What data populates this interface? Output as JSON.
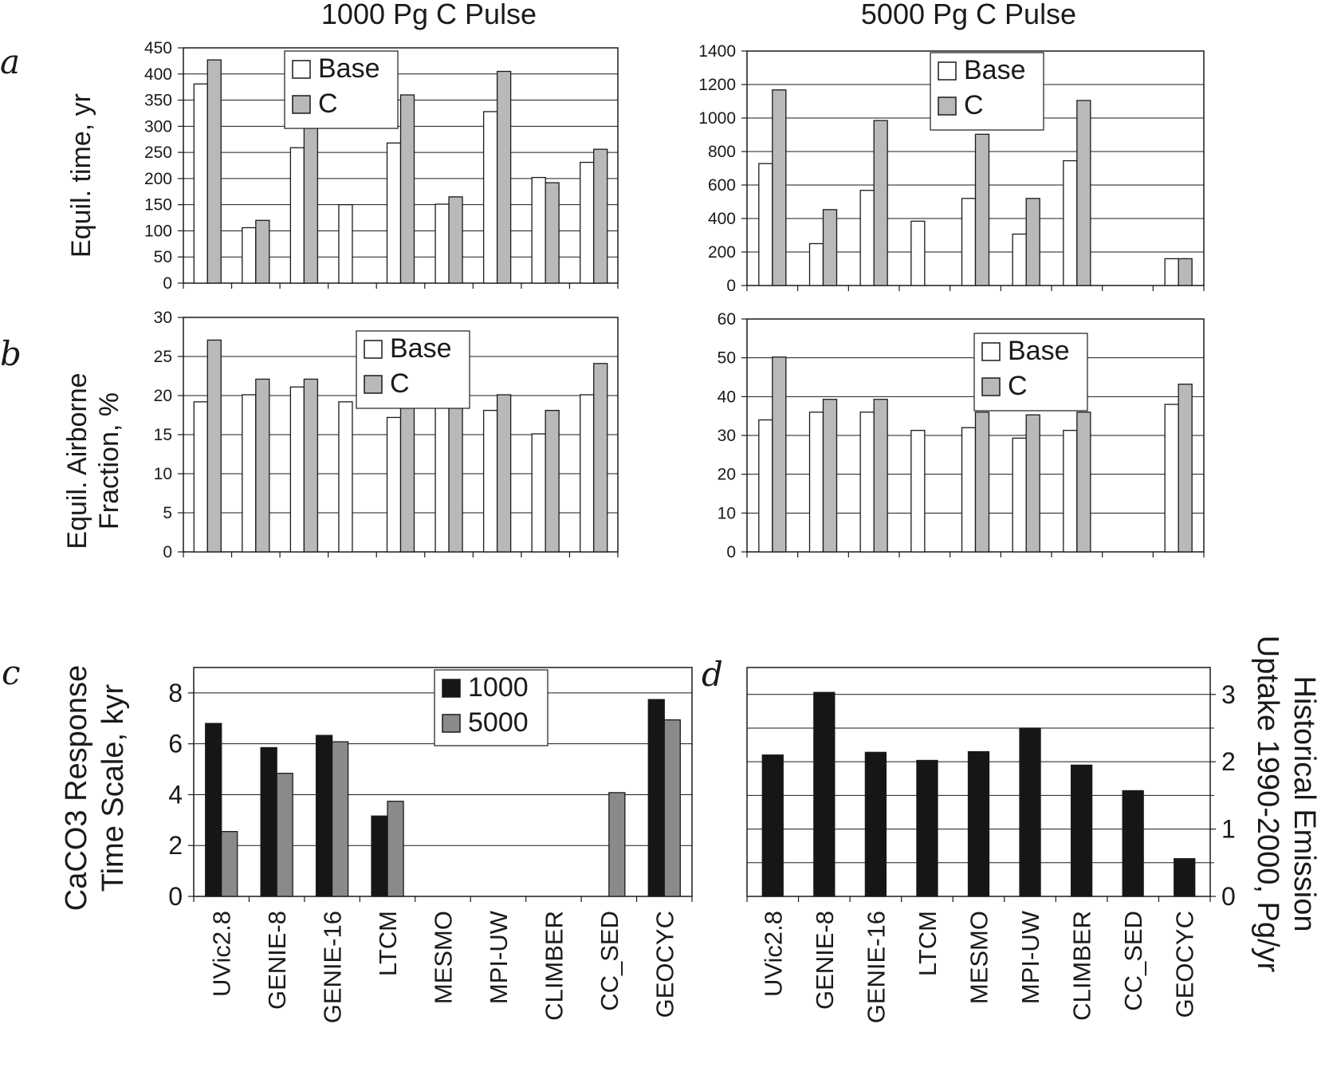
{
  "columns": {
    "left_title": "1000 Pg C Pulse",
    "right_title": "5000 Pg C Pulse"
  },
  "row_labels": {
    "a": {
      "letter": "a",
      "ylabel": "Equil. time, yr"
    },
    "b": {
      "letter": "b",
      "ylabel_line1": "Equil. Airborne",
      "ylabel_line2": "Fraction, %"
    },
    "c": {
      "letter": "c",
      "ylabel_line1": "CaCO3 Response",
      "ylabel_line2": "Time Scale, kyr"
    },
    "d": {
      "letter": "d",
      "ylabel_line1": "Historical Emission",
      "ylabel_line2": "Uptake 1990-2000, Pg/yr"
    }
  },
  "categories": [
    "UVic2.8",
    "GENIE-8",
    "GENIE-16",
    "LTCM",
    "MESMO",
    "MPI-UW",
    "CLIMBER",
    "CC_SED",
    "GEOCYC"
  ],
  "colors": {
    "base": "#ffffff",
    "c": "#b9b9b9",
    "black": "#161616",
    "gray5000": "#8a8a8a",
    "axis": "#1a1a1a"
  },
  "chart_data": [
    {
      "id": "a_left",
      "type": "bar",
      "title": "1000 Pg C Pulse",
      "ylabel": "Equil. time, yr",
      "ylim": [
        0,
        450
      ],
      "yticks": [
        0,
        50,
        100,
        150,
        200,
        250,
        300,
        350,
        400,
        450
      ],
      "grid": true,
      "legend": "top-center",
      "categories": [
        "UVic2.8",
        "GENIE-8",
        "GENIE-16",
        "LTCM",
        "MESMO",
        "MPI-UW",
        "CLIMBER",
        "CC_SED",
        "GEOCYC"
      ],
      "series": [
        {
          "name": "Base",
          "color": "#ffffff",
          "values": [
            381,
            106,
            259,
            150,
            268,
            151,
            328,
            202,
            231
          ]
        },
        {
          "name": "C",
          "color": "#b9b9b9",
          "values": [
            427,
            120,
            310,
            null,
            360,
            165,
            405,
            192,
            256
          ]
        }
      ]
    },
    {
      "id": "a_right",
      "type": "bar",
      "title": "5000 Pg C Pulse",
      "ylim": [
        0,
        1400
      ],
      "yticks": [
        0,
        200,
        400,
        600,
        800,
        1000,
        1200,
        1400
      ],
      "grid": true,
      "legend": "top-center",
      "categories": [
        "UVic2.8",
        "GENIE-8",
        "GENIE-16",
        "LTCM",
        "MESMO",
        "MPI-UW",
        "CLIMBER",
        "CC_SED",
        "GEOCYC"
      ],
      "series": [
        {
          "name": "Base",
          "color": "#ffffff",
          "values": [
            728,
            250,
            568,
            384,
            520,
            307,
            745,
            null,
            160
          ]
        },
        {
          "name": "C",
          "color": "#b9b9b9",
          "values": [
            1168,
            453,
            985,
            null,
            903,
            520,
            1105,
            null,
            160
          ]
        }
      ]
    },
    {
      "id": "b_left",
      "type": "bar",
      "ylabel": "Equil. Airborne Fraction, %",
      "ylim": [
        0,
        30
      ],
      "yticks": [
        0,
        5,
        10,
        15,
        20,
        25,
        30
      ],
      "grid": true,
      "legend": "top-center",
      "categories": [
        "UVic2.8",
        "GENIE-8",
        "GENIE-16",
        "LTCM",
        "MESMO",
        "MPI-UW",
        "CLIMBER",
        "CC_SED",
        "GEOCYC"
      ],
      "series": [
        {
          "name": "Base",
          "color": "#ffffff",
          "values": [
            19.2,
            20.1,
            21.1,
            19.2,
            17.2,
            19.2,
            18.1,
            15.1,
            20.1
          ]
        },
        {
          "name": "C",
          "color": "#b9b9b9",
          "values": [
            27.1,
            22.1,
            22.1,
            null,
            19.2,
            22.1,
            20.1,
            18.1,
            24.1
          ]
        }
      ]
    },
    {
      "id": "b_right",
      "type": "bar",
      "ylim": [
        0,
        60
      ],
      "yticks": [
        0,
        10,
        20,
        30,
        40,
        50,
        60
      ],
      "grid": true,
      "legend": "top-right",
      "categories": [
        "UVic2.8",
        "GENIE-8",
        "GENIE-16",
        "LTCM",
        "MESMO",
        "MPI-UW",
        "CLIMBER",
        "CC_SED",
        "GEOCYC"
      ],
      "series": [
        {
          "name": "Base",
          "color": "#ffffff",
          "values": [
            34,
            36,
            36,
            31.3,
            32,
            29.3,
            31.3,
            null,
            38
          ]
        },
        {
          "name": "C",
          "color": "#b9b9b9",
          "values": [
            50.2,
            39.3,
            39.3,
            null,
            36,
            35.3,
            36,
            null,
            43.2
          ]
        }
      ]
    },
    {
      "id": "c",
      "type": "bar",
      "ylabel": "CaCO3 Response Time Scale, kyr",
      "ylim": [
        0,
        9
      ],
      "yticks": [
        0,
        2,
        4,
        6,
        8
      ],
      "grid": true,
      "legend": "top-right",
      "categories": [
        "UVic2.8",
        "GENIE-8",
        "GENIE-16",
        "LTCM",
        "MESMO",
        "MPI-UW",
        "CLIMBER",
        "CC_SED",
        "GEOCYC"
      ],
      "series": [
        {
          "name": "1000",
          "color": "#161616",
          "values": [
            6.8,
            5.85,
            6.33,
            3.16,
            null,
            null,
            null,
            null,
            7.74
          ]
        },
        {
          "name": "5000",
          "color": "#8a8a8a",
          "values": [
            2.55,
            4.84,
            6.08,
            3.74,
            null,
            null,
            null,
            4.08,
            6.94
          ]
        }
      ]
    },
    {
      "id": "d",
      "type": "bar",
      "ylabel": "Historical Emission Uptake 1990-2000, Pg/yr",
      "ylim": [
        0,
        3.4
      ],
      "yticks": [
        0,
        1,
        2,
        3
      ],
      "grid": true,
      "categories": [
        "UVic2.8",
        "GENIE-8",
        "GENIE-16",
        "LTCM",
        "MESMO",
        "MPI-UW",
        "CLIMBER",
        "CC_SED",
        "GEOCYC"
      ],
      "series": [
        {
          "color": "#161616",
          "values": [
            2.1,
            3.03,
            2.14,
            2.02,
            2.15,
            2.5,
            1.95,
            1.57,
            0.56
          ]
        }
      ]
    }
  ]
}
